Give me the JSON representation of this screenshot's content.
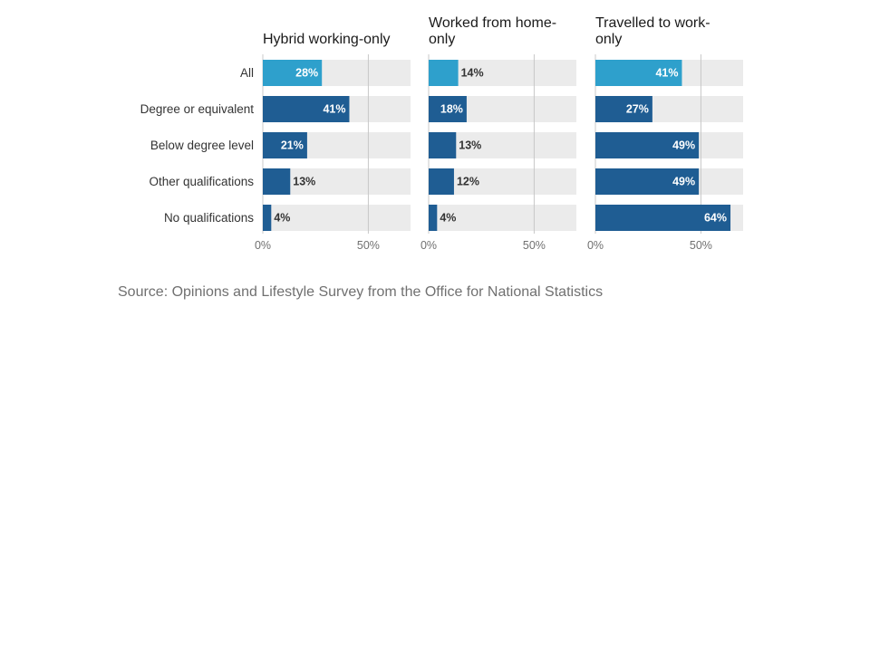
{
  "chart_data": {
    "type": "bar",
    "orientation": "horizontal",
    "categories": [
      "All",
      "Degree or equivalent",
      "Below degree level",
      "Other qualifications",
      "No qualifications"
    ],
    "panels": [
      {
        "title_lines": [
          "Hybrid working-only"
        ],
        "values": [
          28,
          41,
          21,
          13,
          4
        ]
      },
      {
        "title_lines": [
          "Worked from home-",
          "only"
        ],
        "values": [
          14,
          18,
          13,
          12,
          4
        ]
      },
      {
        "title_lines": [
          "Travelled to work-",
          "only"
        ],
        "values": [
          41,
          27,
          49,
          49,
          64
        ]
      }
    ],
    "value_suffix": "%",
    "xlim": [
      0,
      70
    ],
    "xticks": [
      0,
      50
    ],
    "xtick_labels": [
      "0%",
      "50%"
    ],
    "grid": true,
    "colors": {
      "highlight": "#2ea0cc",
      "bar": "#1f5d93",
      "track": "#ebebeb",
      "gridline": "#c8c8c8",
      "label_inside": "#ffffff",
      "label_outside": "#333333"
    }
  },
  "source": "Source: Opinions and Lifestyle Survey from the Office for National Statistics"
}
